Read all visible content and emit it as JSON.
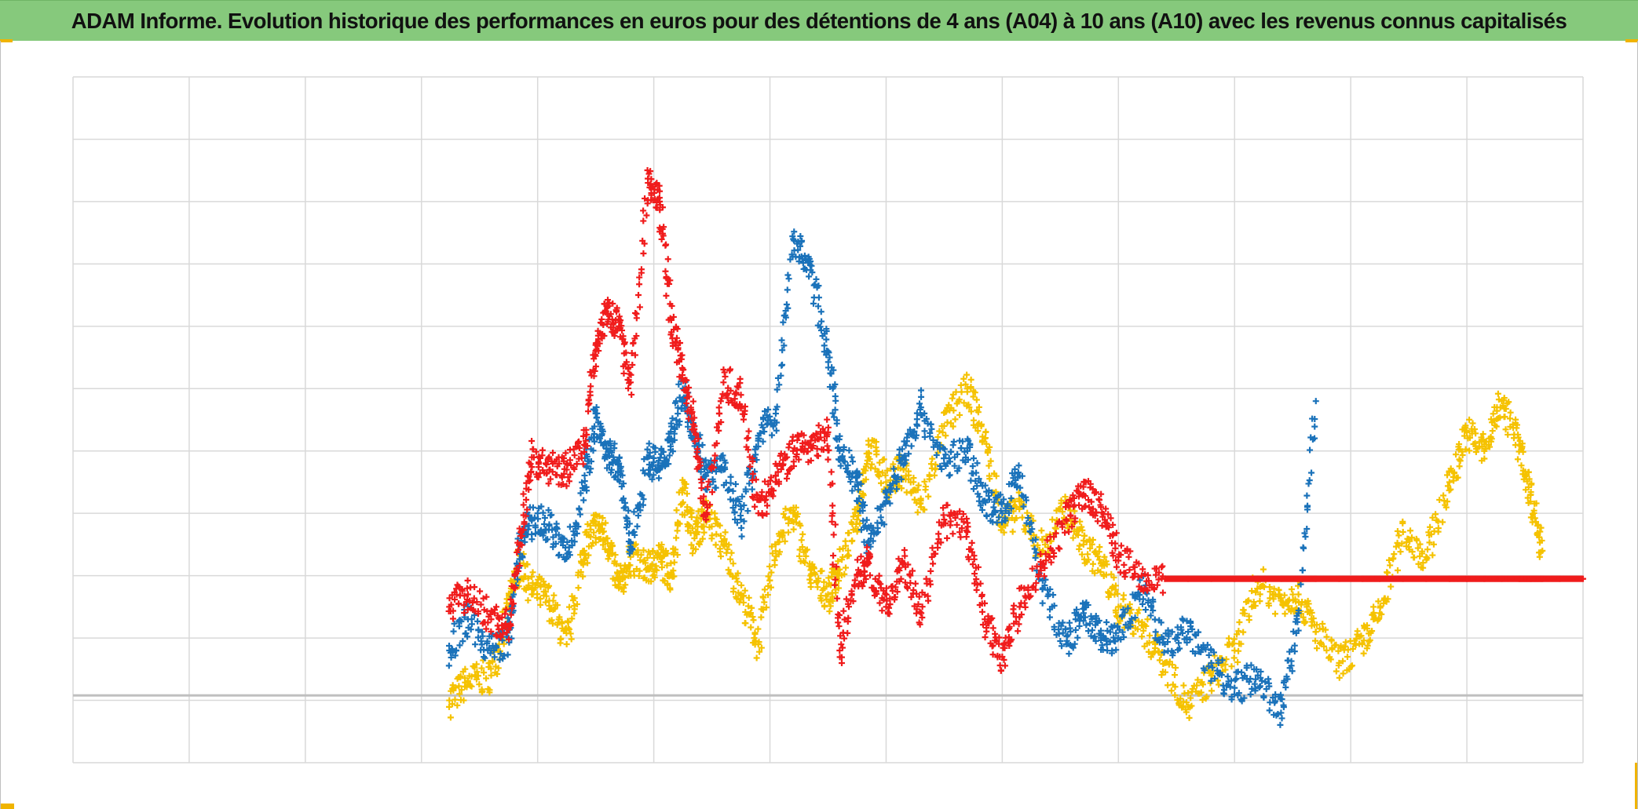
{
  "title": "ADAM Informe. Evolution historique des performances en euros pour des détentions de 4 ans (A04) à 10 ans (A10) avec les revenus connus capitalisés",
  "colors": {
    "title_bg": "#86c97c",
    "grid": "#d9d9d9",
    "zero_line": "#bfbfbf",
    "accent_corner": "#f0b400"
  },
  "chart_data": {
    "type": "scatter",
    "title": "ADAM Informe. Evolution historique des performances en euros pour des détentions de 4 ans (A04) à 10 ans (A10) avec les revenus connus capitalisés",
    "xlabel": "",
    "ylabel": "",
    "xlim": [
      0,
      13
    ],
    "ylim": [
      -1,
      10
    ],
    "baseline_y": 0.08,
    "grid": true,
    "x_gridlines": 13,
    "y_gridlines": 11,
    "legend": "none",
    "marker": "+",
    "series": [
      {
        "color": "#f5c200",
        "x": [
          3.24,
          3.4,
          3.6,
          3.75,
          3.85,
          3.95,
          4.1,
          4.25,
          4.4,
          4.5,
          4.6,
          4.7,
          4.8,
          4.95,
          5.05,
          5.15,
          5.25,
          5.35,
          5.45,
          5.6,
          5.75,
          5.9,
          6.05,
          6.2,
          6.35,
          6.5,
          6.6,
          6.75,
          6.85,
          7.0,
          7.15,
          7.3,
          7.5,
          7.7,
          7.85,
          8.0,
          8.15,
          8.35,
          8.55,
          8.7,
          8.85,
          9.0,
          9.2,
          9.4,
          9.6,
          9.8,
          10.0,
          10.2,
          10.4,
          10.55,
          10.7,
          10.9,
          11.1,
          11.25,
          11.45,
          11.65,
          11.85,
          12.0,
          12.15,
          12.3,
          12.45,
          12.55,
          12.65
        ],
        "y": [
          0.0,
          0.3,
          0.4,
          1.5,
          2.2,
          1.8,
          1.6,
          0.9,
          2.4,
          2.8,
          2.6,
          1.8,
          2.3,
          2.1,
          2.3,
          2.0,
          3.4,
          2.6,
          3.0,
          2.5,
          1.7,
          0.9,
          2.5,
          3.0,
          2.0,
          1.7,
          2.1,
          2.9,
          4.1,
          3.5,
          3.7,
          3.1,
          4.4,
          5.0,
          4.2,
          2.8,
          3.1,
          2.4,
          3.1,
          2.5,
          2.2,
          1.5,
          1.2,
          0.6,
          -0.1,
          0.4,
          0.8,
          1.9,
          1.6,
          1.7,
          1.1,
          0.6,
          0.9,
          1.4,
          2.7,
          2.3,
          3.5,
          4.3,
          4.0,
          4.8,
          4.1,
          3.3,
          2.4
        ]
      },
      {
        "color": "#1a72ba",
        "x": [
          3.24,
          3.4,
          3.6,
          3.75,
          3.85,
          3.95,
          4.1,
          4.25,
          4.4,
          4.5,
          4.6,
          4.7,
          4.8,
          4.95,
          5.05,
          5.15,
          5.25,
          5.35,
          5.45,
          5.6,
          5.75,
          5.9,
          6.05,
          6.2,
          6.35,
          6.5,
          6.6,
          6.75,
          6.85,
          7.0,
          7.15,
          7.3,
          7.5,
          7.7,
          7.85,
          8.0,
          8.15,
          8.35,
          8.55,
          8.7,
          8.85,
          9.0,
          9.2,
          9.4,
          9.6,
          9.8,
          10.0,
          10.2,
          10.4,
          10.55,
          10.7
        ],
        "y": [
          0.8,
          1.3,
          0.8,
          1.0,
          2.5,
          2.9,
          2.8,
          2.3,
          3.4,
          4.6,
          3.9,
          3.8,
          2.4,
          3.9,
          3.7,
          4.2,
          5.0,
          4.3,
          3.6,
          3.7,
          2.9,
          4.2,
          4.6,
          7.4,
          6.9,
          5.6,
          4.0,
          3.5,
          2.5,
          3.2,
          3.9,
          4.7,
          3.8,
          4.0,
          3.2,
          3.0,
          3.6,
          1.8,
          0.9,
          1.4,
          1.0,
          1.0,
          1.8,
          0.9,
          1.1,
          0.6,
          0.2,
          0.4,
          -0.2,
          1.4,
          4.8
        ]
      },
      {
        "color": "#f01c1c",
        "x": [
          3.24,
          3.4,
          3.6,
          3.75,
          3.85,
          3.95,
          4.1,
          4.25,
          4.4,
          4.5,
          4.6,
          4.7,
          4.8,
          4.95,
          5.05,
          5.15,
          5.25,
          5.35,
          5.45,
          5.6,
          5.75,
          5.9,
          6.05,
          6.2,
          6.35,
          6.5,
          6.6,
          6.75,
          6.85,
          7.0,
          7.15,
          7.3,
          7.5,
          7.7,
          7.85,
          8.0,
          8.15,
          8.35,
          8.55,
          8.7,
          8.85,
          9.0,
          9.2,
          9.4,
          9.6,
          9.8,
          10.0,
          10.2,
          10.4,
          10.55,
          10.7,
          10.9,
          11.1,
          11.25,
          11.45,
          11.65,
          11.85,
          12.0,
          12.15,
          12.3,
          12.45,
          12.55,
          12.65,
          12.8,
          13.0
        ],
        "y": [
          1.5,
          1.7,
          1.3,
          1.2,
          2.5,
          3.9,
          3.7,
          3.7,
          4.1,
          5.7,
          6.3,
          6.0,
          5.1,
          8.3,
          8.0,
          6.1,
          5.3,
          4.4,
          2.9,
          5.1,
          4.9,
          3.0,
          3.6,
          4.0,
          4.1,
          4.3,
          0.8,
          2.0,
          2.2,
          1.5,
          2.2,
          1.4,
          2.9,
          2.7,
          1.3,
          0.7,
          1.5,
          2.2,
          2.9,
          3.3,
          3.1,
          2.3,
          2.0,
          1.95,
          1.95,
          1.95,
          1.95,
          1.95,
          1.95,
          1.95,
          1.95,
          1.95,
          1.95,
          1.95,
          1.95,
          1.95,
          1.95,
          1.95,
          1.95,
          1.95,
          1.95,
          1.95,
          1.95,
          1.95,
          1.95
        ]
      }
    ]
  }
}
